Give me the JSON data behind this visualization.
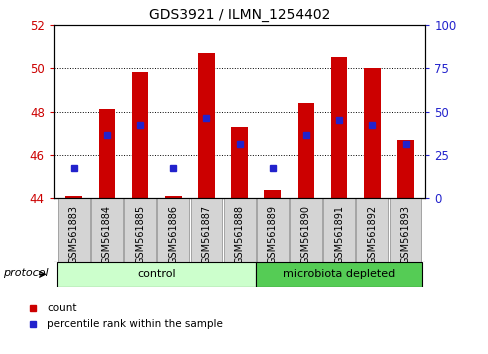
{
  "title": "GDS3921 / ILMN_1254402",
  "samples": [
    "GSM561883",
    "GSM561884",
    "GSM561885",
    "GSM561886",
    "GSM561887",
    "GSM561888",
    "GSM561889",
    "GSM561890",
    "GSM561891",
    "GSM561892",
    "GSM561893"
  ],
  "count_values": [
    44.1,
    48.1,
    49.8,
    44.1,
    50.7,
    47.3,
    44.4,
    48.4,
    50.5,
    50.0,
    46.7
  ],
  "percentile_values": [
    45.4,
    46.9,
    47.4,
    45.4,
    47.7,
    46.5,
    45.4,
    46.9,
    47.6,
    47.4,
    46.5
  ],
  "bar_bottom": 44.0,
  "bar_color": "#cc0000",
  "dot_color": "#2222cc",
  "ylim_left": [
    44.0,
    52.0
  ],
  "ylim_right": [
    0,
    100
  ],
  "yticks_left": [
    44,
    46,
    48,
    50,
    52
  ],
  "yticks_right": [
    0,
    25,
    50,
    75,
    100
  ],
  "left_tick_color": "#cc0000",
  "right_tick_color": "#2222cc",
  "grid_yticks": [
    46,
    48,
    50
  ],
  "protocol_groups": [
    {
      "label": "control",
      "color": "#ccffcc",
      "count": 6
    },
    {
      "label": "microbiota depleted",
      "color": "#55cc55",
      "count": 5
    }
  ],
  "protocol_label": "protocol",
  "legend": [
    {
      "label": "count",
      "color": "#cc0000"
    },
    {
      "label": "percentile rank within the sample",
      "color": "#2222cc"
    }
  ],
  "background_color": "#ffffff",
  "bar_width": 0.5,
  "label_box_color": "#d4d4d4",
  "label_box_edge": "#888888"
}
